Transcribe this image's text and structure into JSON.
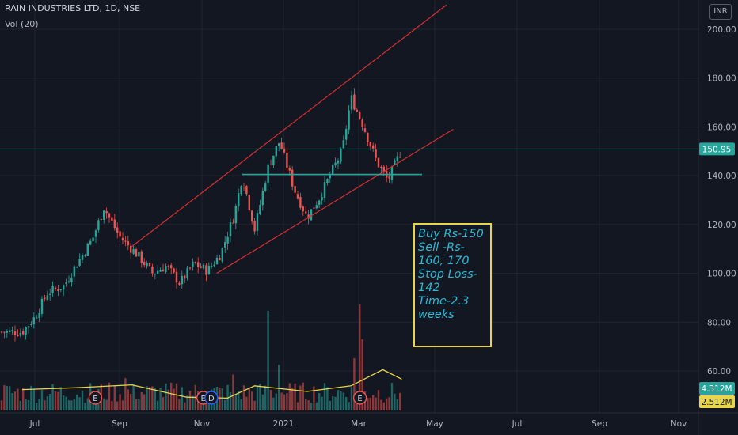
{
  "header": {
    "symbol_line": "RAIN INDUSTRIES LTD, 1D, NSE",
    "volume_label": "Vol (20)",
    "currency_button": "INR"
  },
  "annotation": {
    "lines": [
      "Buy Rs-150",
      "Sell -Rs-",
      "160, 170",
      "Stop Loss-",
      "142",
      "Time-2.3",
      "weeks"
    ]
  },
  "colors": {
    "background": "#131722",
    "grid": "#232632",
    "up": "#26a69a",
    "down": "#ef5350",
    "trendline": "#d32f2f",
    "support": "#26a69a",
    "volume_ma": "#e8d54a",
    "note_border": "#e8d54a",
    "note_text": "#2bb9d6"
  },
  "chart_data": {
    "type": "candlestick",
    "title": "RAIN INDUSTRIES LTD, 1D, NSE",
    "x_axis": {
      "labels": [
        "Jul",
        "Sep",
        "Nov",
        "2021",
        "Mar",
        "May",
        "Jul",
        "Sep",
        "Nov"
      ]
    },
    "y_axis": {
      "labels": [
        "200.00",
        "180.00",
        "160.00",
        "140.00",
        "120.00",
        "100.00",
        "80.00",
        "60.00"
      ],
      "range": [
        54,
        213
      ]
    },
    "last_price_label": "150.95",
    "last_price": 150.95,
    "volume_labels": [
      "4.312M",
      "2.512M"
    ],
    "support_level": 140.5,
    "price_path": [
      {
        "date": "Jun 22",
        "close": 76
      },
      {
        "date": "Jul 1",
        "close": 82
      },
      {
        "date": "Jul 10",
        "close": 92
      },
      {
        "date": "Jul 22",
        "close": 95
      },
      {
        "date": "Aug 1",
        "close": 104
      },
      {
        "date": "Aug 12",
        "close": 114
      },
      {
        "date": "Aug 20",
        "close": 127
      },
      {
        "date": "Sep 1",
        "close": 115
      },
      {
        "date": "Sep 15",
        "close": 107
      },
      {
        "date": "Sep 25",
        "close": 100
      },
      {
        "date": "Oct 5",
        "close": 103
      },
      {
        "date": "Oct 15",
        "close": 96
      },
      {
        "date": "Oct 25",
        "close": 104
      },
      {
        "date": "Nov 5",
        "close": 101
      },
      {
        "date": "Nov 15",
        "close": 108
      },
      {
        "date": "Nov 25",
        "close": 124
      },
      {
        "date": "Dec 1",
        "close": 140
      },
      {
        "date": "Dec 10",
        "close": 118
      },
      {
        "date": "Dec 20",
        "close": 144
      },
      {
        "date": "Dec 28",
        "close": 154
      },
      {
        "date": "Jan 10",
        "close": 134
      },
      {
        "date": "Jan 20",
        "close": 123
      },
      {
        "date": "Jan 30",
        "close": 131
      },
      {
        "date": "Feb 10",
        "close": 142
      },
      {
        "date": "Feb 18",
        "close": 150
      },
      {
        "date": "Feb 25",
        "close": 172
      },
      {
        "date": "Mar 5",
        "close": 160
      },
      {
        "date": "Mar 15",
        "close": 146
      },
      {
        "date": "Mar 24",
        "close": 138
      },
      {
        "date": "Apr 5",
        "close": 150.95
      }
    ],
    "volume_ma_path": [
      {
        "date": "Jun 22",
        "value": 2.2
      },
      {
        "date": "Aug 1",
        "value": 2.4
      },
      {
        "date": "Sep 10",
        "value": 2.7
      },
      {
        "date": "Oct 20",
        "value": 1.4
      },
      {
        "date": "Nov 20",
        "value": 1.3
      },
      {
        "date": "Dec 10",
        "value": 2.6
      },
      {
        "date": "Jan 20",
        "value": 2.0
      },
      {
        "date": "Feb 25",
        "value": 2.6
      },
      {
        "date": "Mar 20",
        "value": 4.3
      },
      {
        "date": "Apr 5",
        "value": 3.3
      }
    ],
    "trendlines": [
      {
        "name": "upper-channel",
        "from": {
          "date": "Sep 10",
          "value": 111
        },
        "to": {
          "date": "May 10",
          "value": 210
        }
      },
      {
        "name": "lower-channel",
        "from": {
          "date": "Nov 12",
          "value": 100
        },
        "to": {
          "date": "May 15",
          "value": 159
        }
      }
    ],
    "event_markers": [
      {
        "label": "E",
        "date": "Aug 14",
        "color": "#ef5350"
      },
      {
        "label": "E",
        "date": "Nov 2",
        "color": "#ef5350"
      },
      {
        "label": "D",
        "date": "Nov 8",
        "color": "#2962ff"
      },
      {
        "label": "E",
        "date": "Mar 2",
        "color": "#ef5350"
      }
    ]
  }
}
